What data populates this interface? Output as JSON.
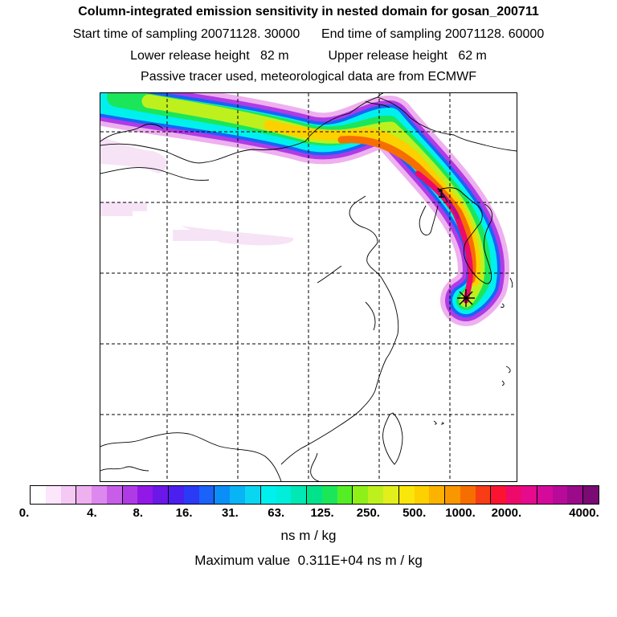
{
  "header": {
    "title": "Column-integrated emission sensitivity in nested domain for gosan_200711",
    "line2": "Start time of sampling 20071128. 30000      End time of sampling 20071128. 60000",
    "line3": "Lower release height   82 m           Upper release height   62 m",
    "line4": "Passive tracer used, meteorological data are from ECMWF"
  },
  "map": {
    "cluster_label": "1",
    "colors": {
      "coast": "#000000",
      "grid": "#000000",
      "marker": "#000000"
    }
  },
  "colorbar": {
    "colors": [
      "#ffffff",
      "#fbe6fb",
      "#f4c9f4",
      "#eeb0ee",
      "#dd88ee",
      "#c85ee8",
      "#b03be6",
      "#9118e6",
      "#6a17e8",
      "#4a1ff0",
      "#2a3af5",
      "#1a62f8",
      "#0a8ef8",
      "#09b4f5",
      "#0ad6f2",
      "#00f0ee",
      "#00eedb",
      "#00e8b4",
      "#00e38a",
      "#1be65a",
      "#55ee26",
      "#8ef018",
      "#bef01e",
      "#e2ef1c",
      "#fae60a",
      "#fdd000",
      "#fbb300",
      "#f99600",
      "#f76e00",
      "#f73c16",
      "#fa1432",
      "#ee0a6a",
      "#e60a8c",
      "#d40a9a",
      "#b80a98",
      "#9a0a8a",
      "#7a0a74"
    ],
    "ticks": [
      "0.",
      "4.",
      "8.",
      "16.",
      "31.",
      "63.",
      "125.",
      "250.",
      "500.",
      "1000.",
      "2000.",
      "4000."
    ],
    "units": "ns m / kg"
  },
  "footer": {
    "max_value": "Maximum value  0.311E+04 ns m / kg"
  }
}
